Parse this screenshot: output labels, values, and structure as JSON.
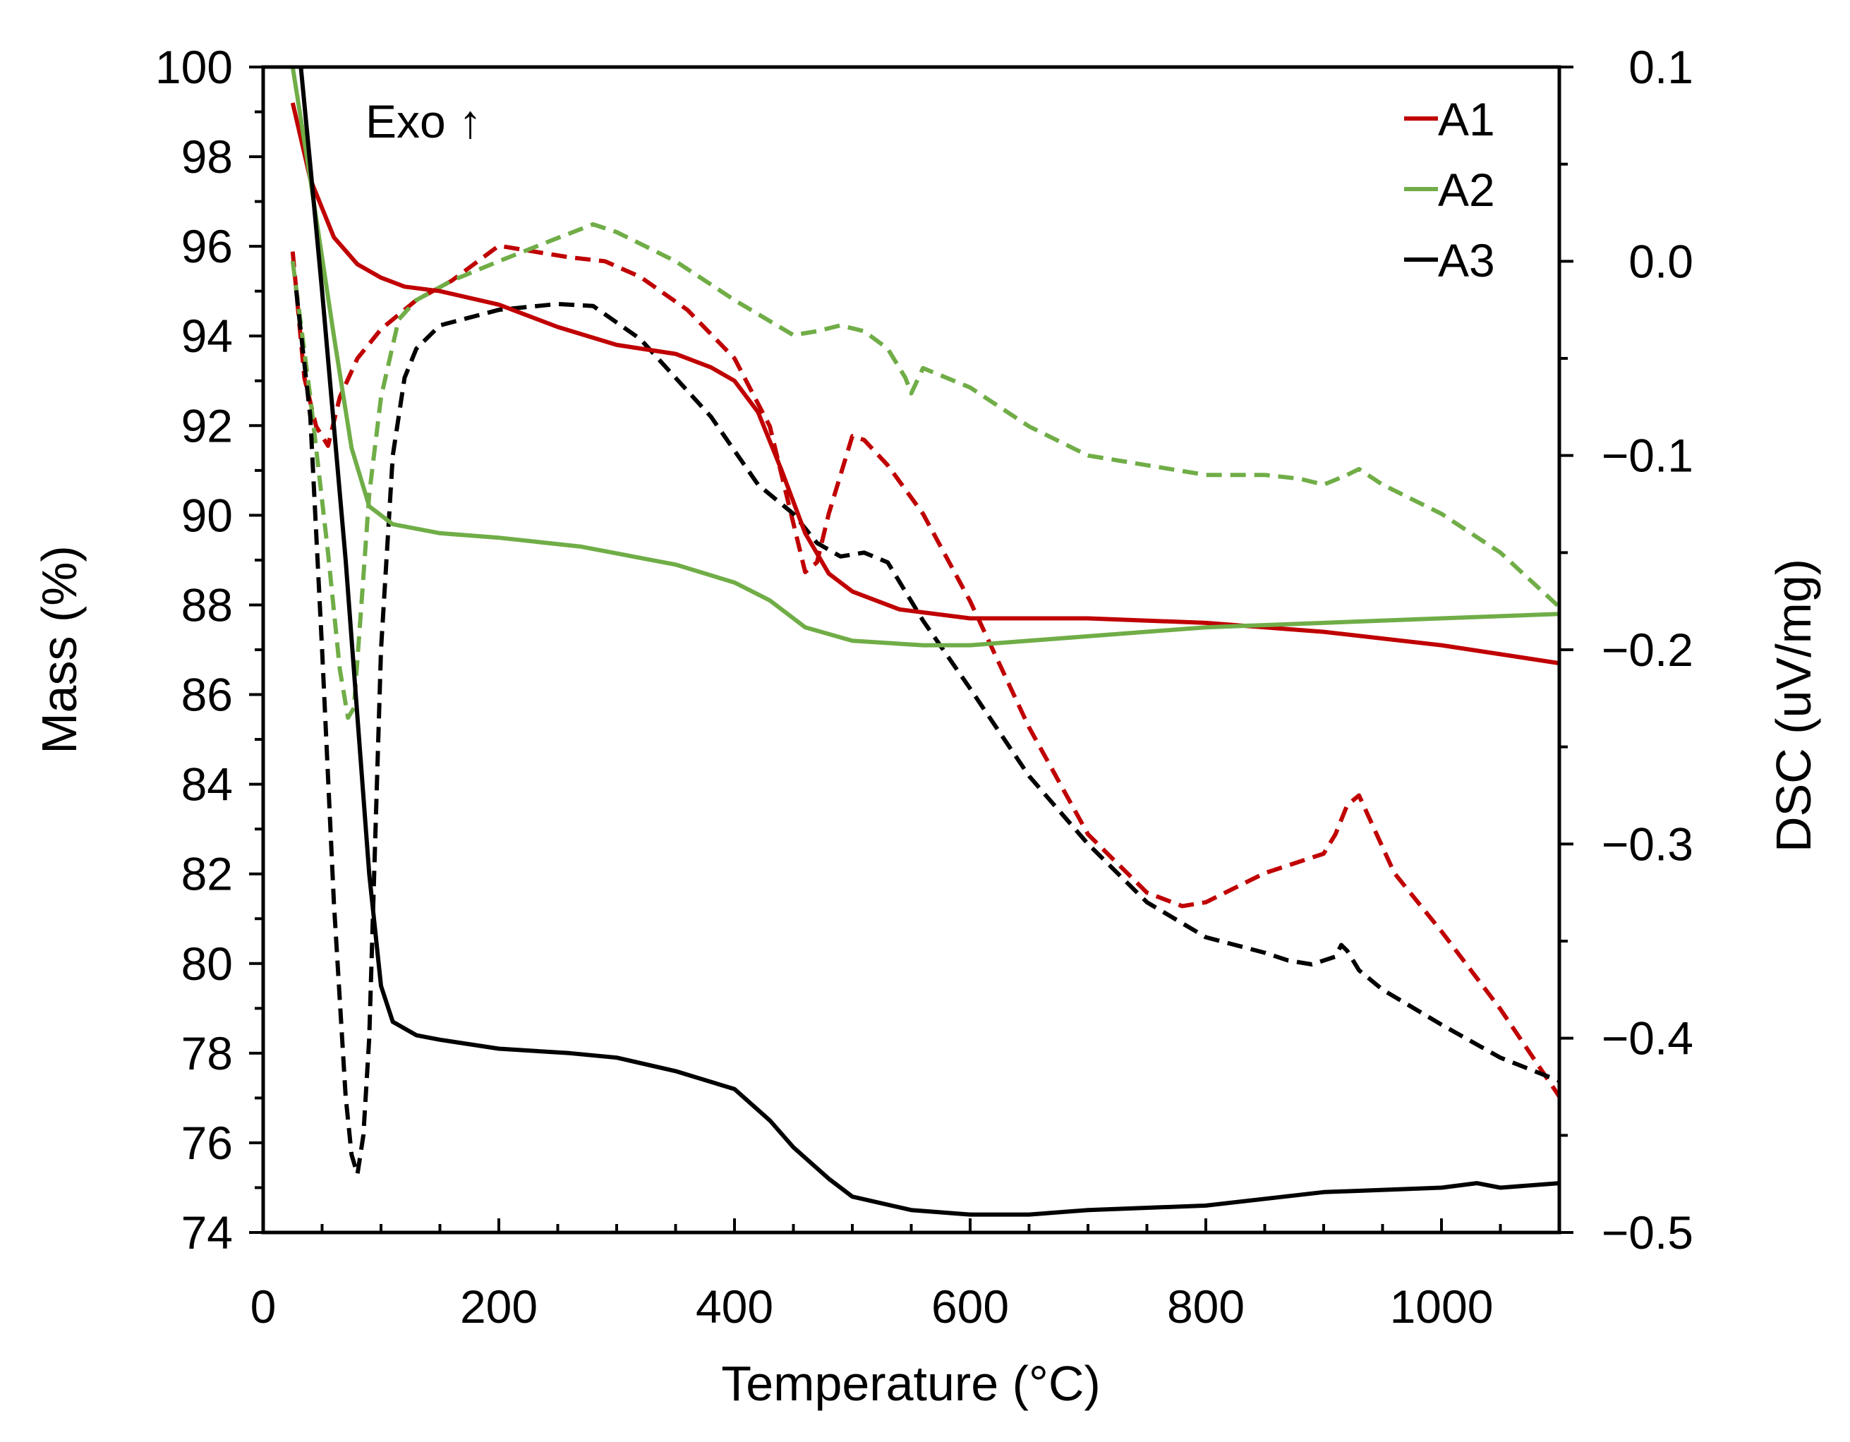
{
  "chart_data": {
    "type": "line",
    "title": "",
    "xlabel": "Temperature (°C)",
    "ylabel": "Mass (%)",
    "y2label": "DSC (uV/mg)",
    "xlim": [
      0,
      1100
    ],
    "ylim": [
      74,
      100
    ],
    "y2lim": [
      -0.5,
      0.1
    ],
    "xticks": [
      0,
      200,
      400,
      600,
      800,
      1000
    ],
    "yticks": [
      74,
      76,
      78,
      80,
      82,
      84,
      86,
      88,
      90,
      92,
      94,
      96,
      98,
      100
    ],
    "y2ticks": [
      "0.1",
      "0.0",
      "−0.1",
      "−0.2",
      "−0.3",
      "−0.4",
      "−0.5"
    ],
    "y2tick_values": [
      0.1,
      0.0,
      -0.1,
      -0.2,
      -0.3,
      -0.4,
      -0.5
    ],
    "annotation": "Exo ↑",
    "legend": {
      "position": "top-right",
      "entries": [
        "A1",
        "A2",
        "A3"
      ]
    },
    "colors": {
      "A1": "#c00000",
      "A2": "#70ad47",
      "A3": "#000000"
    },
    "series": [
      {
        "name": "A1",
        "kind": "mass",
        "axis": "left",
        "style": "solid",
        "x": [
          25,
          40,
          60,
          80,
          100,
          120,
          150,
          200,
          250,
          300,
          350,
          380,
          400,
          420,
          440,
          460,
          480,
          500,
          540,
          600,
          700,
          800,
          900,
          1000,
          1100
        ],
        "y": [
          99.2,
          97.5,
          96.2,
          95.6,
          95.3,
          95.1,
          95.0,
          94.7,
          94.2,
          93.8,
          93.6,
          93.3,
          93.0,
          92.3,
          91.0,
          89.6,
          88.7,
          88.3,
          87.9,
          87.7,
          87.7,
          87.6,
          87.4,
          87.1,
          86.7
        ]
      },
      {
        "name": "A2",
        "kind": "mass",
        "axis": "left",
        "style": "solid",
        "x": [
          25,
          40,
          60,
          75,
          90,
          110,
          150,
          200,
          270,
          350,
          400,
          430,
          460,
          500,
          560,
          600,
          700,
          800,
          900,
          1000,
          1100
        ],
        "y": [
          100.0,
          97.5,
          94.0,
          91.5,
          90.2,
          89.8,
          89.6,
          89.5,
          89.3,
          88.9,
          88.5,
          88.1,
          87.5,
          87.2,
          87.1,
          87.1,
          87.3,
          87.5,
          87.6,
          87.7,
          87.8
        ]
      },
      {
        "name": "A3",
        "kind": "mass",
        "axis": "left",
        "style": "solid",
        "x": [
          32,
          40,
          50,
          60,
          70,
          80,
          90,
          100,
          110,
          130,
          150,
          200,
          260,
          300,
          350,
          400,
          430,
          450,
          480,
          500,
          550,
          600,
          650,
          700,
          800,
          900,
          1000,
          1030,
          1050,
          1100
        ],
        "y": [
          100.0,
          97.8,
          95.0,
          92.0,
          89.0,
          85.5,
          82.0,
          79.5,
          78.7,
          78.4,
          78.3,
          78.1,
          78.0,
          77.9,
          77.6,
          77.2,
          76.5,
          75.9,
          75.2,
          74.8,
          74.5,
          74.4,
          74.4,
          74.5,
          74.6,
          74.9,
          75.0,
          75.1,
          75.0,
          75.1
        ]
      },
      {
        "name": "A1",
        "kind": "dsc",
        "axis": "right",
        "style": "dashed",
        "x": [
          25,
          35,
          45,
          55,
          65,
          80,
          100,
          130,
          160,
          200,
          230,
          260,
          290,
          320,
          360,
          400,
          430,
          450,
          460,
          470,
          480,
          500,
          510,
          530,
          560,
          600,
          650,
          700,
          750,
          780,
          800,
          850,
          900,
          910,
          920,
          930,
          960,
          1000,
          1050,
          1100
        ],
        "y": [
          0.005,
          -0.06,
          -0.085,
          -0.095,
          -0.07,
          -0.05,
          -0.035,
          -0.02,
          -0.01,
          0.008,
          0.005,
          0.002,
          0.0,
          -0.008,
          -0.025,
          -0.05,
          -0.085,
          -0.135,
          -0.16,
          -0.155,
          -0.13,
          -0.09,
          -0.092,
          -0.105,
          -0.13,
          -0.175,
          -0.24,
          -0.295,
          -0.325,
          -0.332,
          -0.33,
          -0.315,
          -0.305,
          -0.295,
          -0.28,
          -0.275,
          -0.315,
          -0.345,
          -0.385,
          -0.43
        ]
      },
      {
        "name": "A2",
        "kind": "dsc",
        "axis": "right",
        "style": "dashed",
        "x": [
          25,
          40,
          55,
          65,
          72,
          77,
          83,
          90,
          100,
          115,
          130,
          160,
          200,
          250,
          280,
          300,
          350,
          400,
          450,
          470,
          490,
          510,
          530,
          545,
          550,
          560,
          600,
          650,
          700,
          750,
          800,
          850,
          880,
          900,
          920,
          930,
          950,
          1000,
          1050,
          1100
        ],
        "y": [
          -0.0,
          -0.07,
          -0.15,
          -0.21,
          -0.235,
          -0.23,
          -0.18,
          -0.12,
          -0.07,
          -0.03,
          -0.02,
          -0.01,
          0.0,
          0.012,
          0.019,
          0.015,
          0.0,
          -0.02,
          -0.038,
          -0.036,
          -0.033,
          -0.036,
          -0.045,
          -0.06,
          -0.068,
          -0.055,
          -0.065,
          -0.085,
          -0.1,
          -0.105,
          -0.11,
          -0.11,
          -0.112,
          -0.115,
          -0.11,
          -0.107,
          -0.115,
          -0.13,
          -0.15,
          -0.178
        ]
      },
      {
        "name": "A3",
        "kind": "dsc",
        "axis": "right",
        "style": "dashed",
        "x": [
          28,
          40,
          50,
          60,
          70,
          75,
          80,
          85,
          90,
          95,
          100,
          110,
          120,
          130,
          150,
          200,
          250,
          280,
          320,
          380,
          420,
          450,
          470,
          490,
          510,
          530,
          560,
          600,
          650,
          700,
          750,
          800,
          850,
          870,
          890,
          910,
          915,
          920,
          930,
          950,
          1000,
          1050,
          1100
        ],
        "y": [
          -0.015,
          -0.08,
          -0.2,
          -0.33,
          -0.43,
          -0.46,
          -0.47,
          -0.45,
          -0.4,
          -0.3,
          -0.2,
          -0.1,
          -0.06,
          -0.045,
          -0.033,
          -0.025,
          -0.022,
          -0.023,
          -0.04,
          -0.08,
          -0.115,
          -0.13,
          -0.145,
          -0.152,
          -0.15,
          -0.155,
          -0.185,
          -0.22,
          -0.265,
          -0.3,
          -0.33,
          -0.348,
          -0.356,
          -0.36,
          -0.362,
          -0.358,
          -0.352,
          -0.355,
          -0.365,
          -0.375,
          -0.393,
          -0.41,
          -0.422
        ]
      }
    ]
  }
}
